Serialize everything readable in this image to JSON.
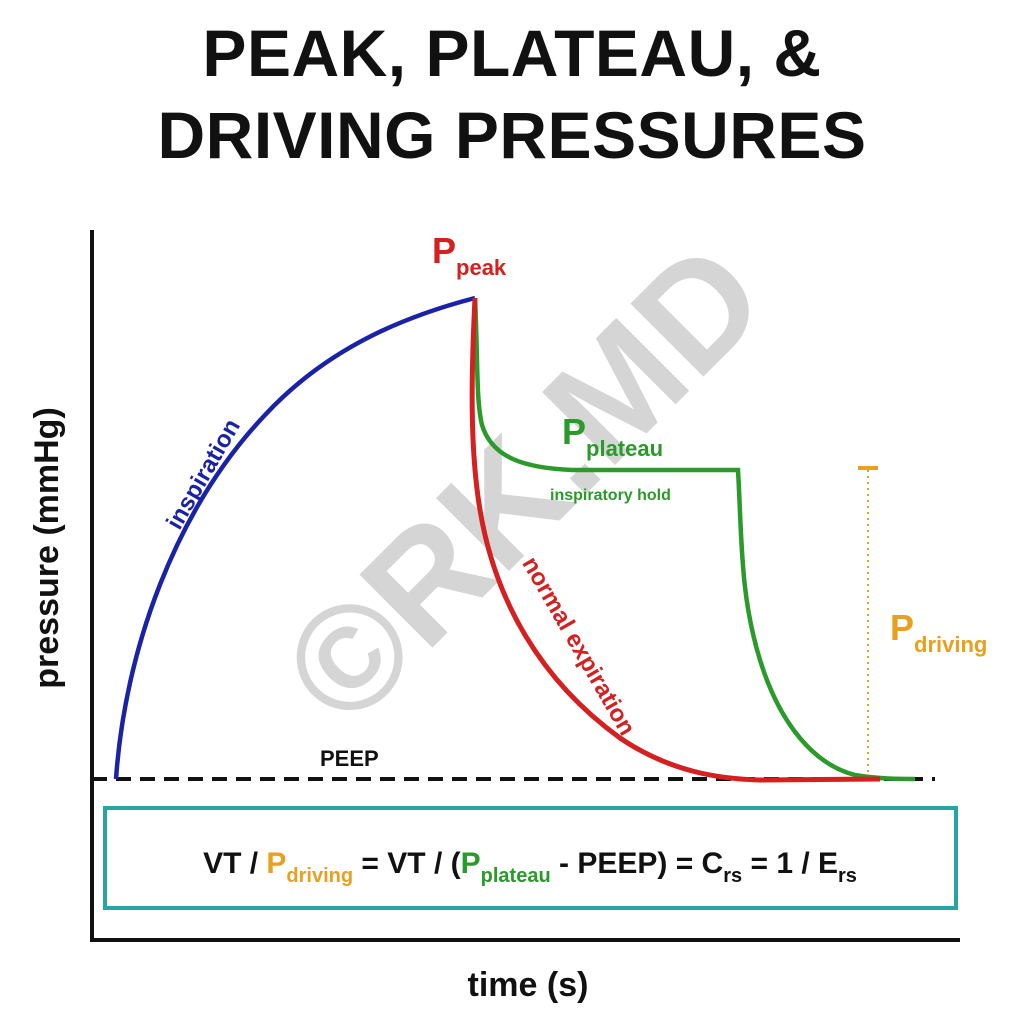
{
  "title": {
    "line1": "PEAK, PLATEAU, &",
    "line2": "DRIVING PRESSURES"
  },
  "axes": {
    "ylabel": "pressure (mmHg)",
    "xlabel": "time (s)"
  },
  "labels": {
    "peak_main": "P",
    "peak_sub": "peak",
    "plateau_main": "P",
    "plateau_sub": "plateau",
    "driving_main": "P",
    "driving_sub": "driving",
    "inspiration": "inspiration",
    "inspiratory_hold": "inspiratory hold",
    "normal_expiration": "normal expiration",
    "peep": "PEEP"
  },
  "equation": {
    "vt1": "VT / ",
    "p1": "P",
    "p1_sub": "driving",
    "eq1": " = VT / (",
    "p2": "P",
    "p2_sub": "plateau",
    "mid": " - PEEP) = C",
    "c_sub": "rs",
    "end": " = 1 / E",
    "e_sub": "rs"
  },
  "watermark": "©RK.MD",
  "colors": {
    "inspiration": "#1a22a8",
    "expiration": "#d42020",
    "plateau": "#2a9a2a",
    "driving": "#e8a020",
    "box_border": "#2aa3a3",
    "text": "#111111"
  }
}
